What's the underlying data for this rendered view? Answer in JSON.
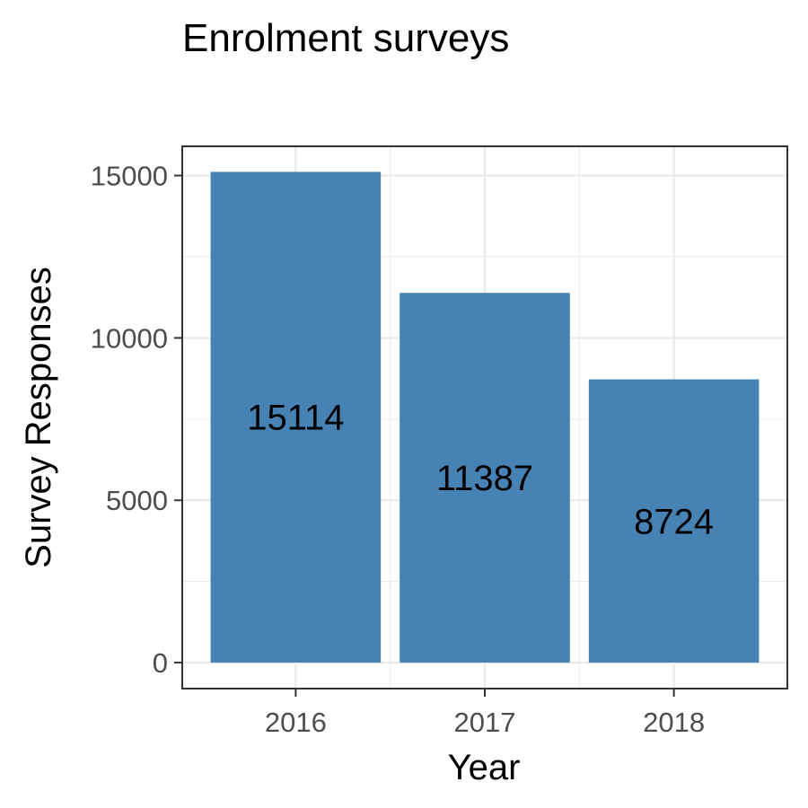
{
  "chart_data": {
    "type": "bar",
    "title": "Enrolment surveys",
    "xlabel": "Year",
    "ylabel": "Survey Responses",
    "categories": [
      "2016",
      "2017",
      "2018"
    ],
    "values": [
      15114,
      11387,
      8724
    ],
    "data_labels": [
      "15114",
      "11387",
      "8724"
    ],
    "ylim": [
      -800,
      15900
    ],
    "yticks": [
      0,
      5000,
      10000,
      15000
    ],
    "ytick_labels": [
      "0",
      "5000",
      "10000",
      "15000"
    ],
    "grid": true,
    "bar_color": "#4682B4",
    "grid_color": "#EBEBEB",
    "panel_border_color": "#333333",
    "tick_label_color": "#4D4D4D"
  }
}
